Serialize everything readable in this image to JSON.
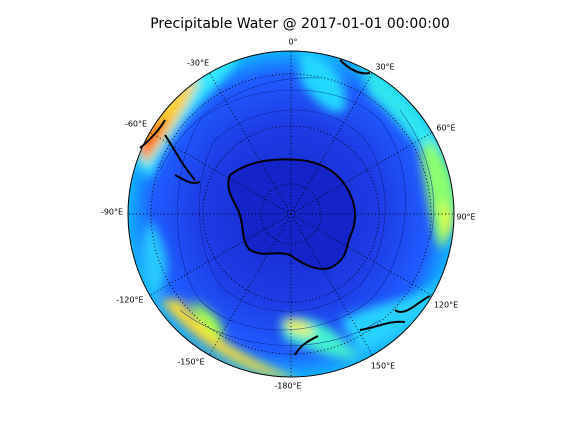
{
  "title": "Precipitable Water @ 2017-01-01 00:00:00",
  "map": {
    "lon_labels": [
      "0°",
      "30°E",
      "60°E",
      "90°E",
      "120°E",
      "150°E",
      "-180°E",
      "-150°E",
      "-120°E",
      "-90°E",
      "-60°E",
      "-30°E"
    ]
  }
}
